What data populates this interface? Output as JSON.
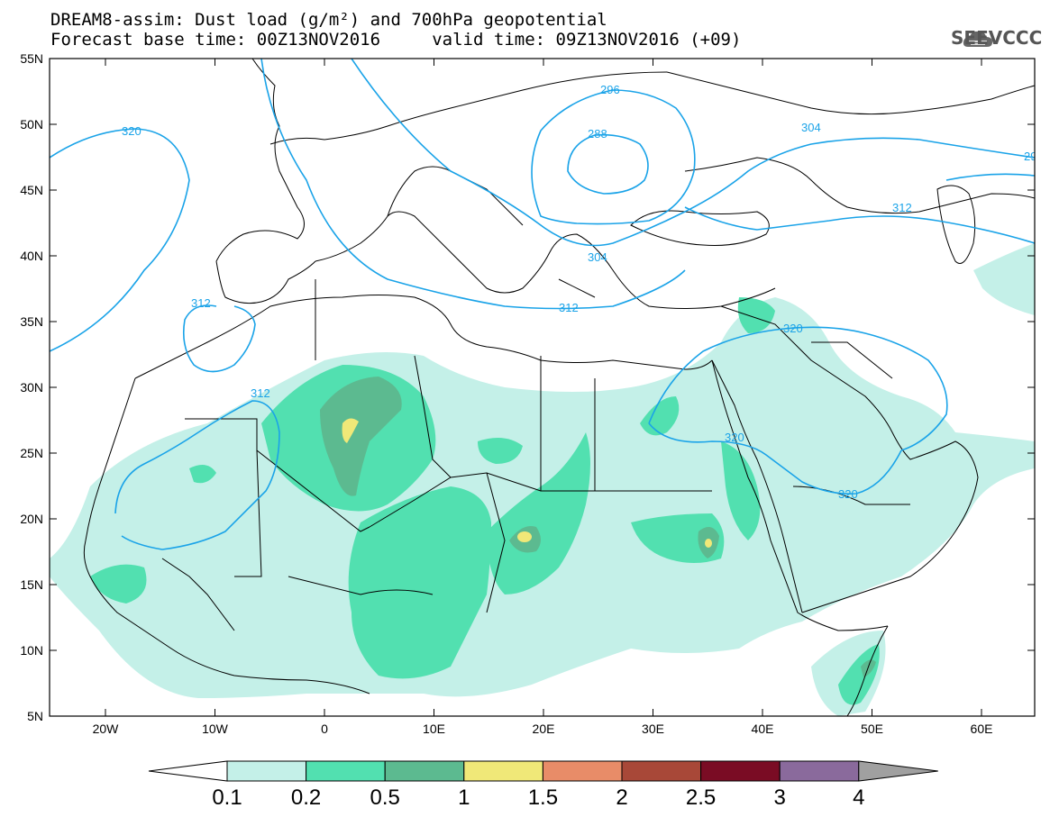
{
  "title_line1": "DREAM8-assim: Dust load (g/m²) and 700hPa geopotential",
  "title_line2": "Forecast base time: 00Z13NOV2016     valid time: 09Z13NOV2016 (+09)",
  "logo_text": "SEEVCCC",
  "lat_labels": [
    "55N",
    "50N",
    "45N",
    "40N",
    "35N",
    "30N",
    "25N",
    "20N",
    "15N",
    "10N",
    "5N"
  ],
  "lon_labels": [
    "20W",
    "10W",
    "0",
    "10E",
    "20E",
    "30E",
    "40E",
    "50E",
    "60E"
  ],
  "contour_labels": [
    "320",
    "312",
    "312",
    "296",
    "288",
    "304",
    "304",
    "312",
    "312",
    "320",
    "320",
    "320",
    "29"
  ],
  "colorbar": {
    "ticks": [
      "0.1",
      "0.2",
      "0.5",
      "1",
      "1.5",
      "2",
      "2.5",
      "3",
      "4"
    ],
    "colors": [
      "#c4f0e8",
      "#52e0b0",
      "#5cba90",
      "#f0e878",
      "#e88c68",
      "#a84838",
      "#7a0c24",
      "#8a6a9c"
    ],
    "under_color": "#ffffff",
    "over_color": "#a0a0a0"
  },
  "colors": {
    "contour": "#1aa3e8",
    "dust_01": "#c4f0e8",
    "dust_02": "#52e0b0",
    "dust_05": "#5cba90",
    "dust_1": "#f0e878"
  }
}
